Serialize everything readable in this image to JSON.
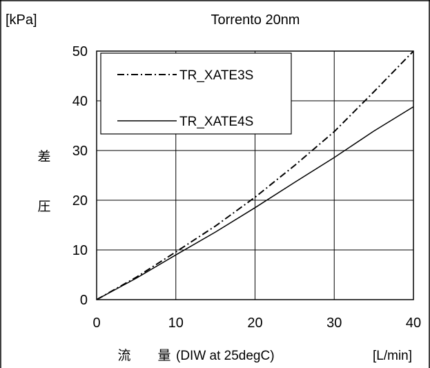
{
  "chart_data": {
    "type": "line",
    "title": "Torrento 20nm",
    "y_unit_label": "[kPa]",
    "x_unit_label": "[L/min]",
    "ylabel_chars": [
      "差",
      "圧"
    ],
    "xlabel": {
      "kanji1": "流",
      "kanji2": "量",
      "detail": "(DIW at 25degC)"
    },
    "xlim": [
      0,
      40
    ],
    "ylim": [
      0,
      50
    ],
    "x_ticks": [
      "0",
      "10",
      "20",
      "30",
      "40"
    ],
    "y_ticks": [
      "0",
      "10",
      "20",
      "30",
      "40",
      "50"
    ],
    "grid": true,
    "legend_position": "top-left",
    "series": [
      {
        "name": "TR_XATE3S",
        "style": "dash-dot",
        "color": "#000000",
        "x": [
          0,
          5,
          10,
          15,
          20,
          25,
          30,
          35,
          40
        ],
        "y": [
          0,
          4.5,
          9.6,
          14.8,
          20.6,
          27.0,
          33.8,
          41.8,
          50.0
        ]
      },
      {
        "name": "TR_XATE4S",
        "style": "solid",
        "color": "#000000",
        "x": [
          0,
          5,
          10,
          15,
          20,
          25,
          30,
          35,
          40
        ],
        "y": [
          0,
          4.3,
          9.0,
          13.6,
          18.5,
          23.6,
          28.6,
          33.9,
          38.8
        ]
      }
    ]
  }
}
